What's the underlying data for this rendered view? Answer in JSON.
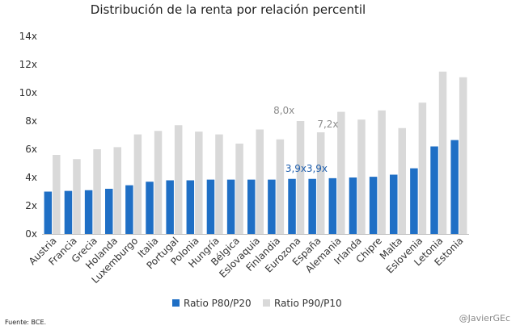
{
  "chart_data": {
    "type": "bar",
    "title": "Distribución de la renta por relación percentil",
    "categories": [
      "Austria",
      "Francia",
      "Grecia",
      "Holanda",
      "Luxemburgo",
      "Italia",
      "Portugal",
      "Polonia",
      "Hungría",
      "Bélgica",
      "Eslovaquia",
      "Finlandia",
      "Eurozona",
      "España",
      "Alemania",
      "Irlanda",
      "Chipre",
      "Malta",
      "Eslovenia",
      "Letonia",
      "Estonia"
    ],
    "series": [
      {
        "name": "Ratio P80/P20",
        "color": "#1f6fc5",
        "values": [
          3.0,
          3.05,
          3.1,
          3.2,
          3.45,
          3.7,
          3.8,
          3.8,
          3.85,
          3.85,
          3.85,
          3.85,
          3.9,
          3.9,
          3.95,
          4.0,
          4.05,
          4.2,
          4.65,
          6.2,
          6.65
        ]
      },
      {
        "name": "Ratio P90/P10",
        "color": "#d9d9d9",
        "values": [
          5.6,
          5.3,
          6.0,
          6.15,
          7.05,
          7.3,
          7.7,
          7.25,
          7.05,
          6.4,
          7.4,
          6.7,
          8.0,
          7.2,
          8.65,
          8.1,
          8.75,
          7.5,
          9.3,
          11.5,
          11.1
        ]
      }
    ],
    "ylim": [
      0,
      14
    ],
    "yticks": [
      0,
      2,
      4,
      6,
      8,
      10,
      12,
      14
    ],
    "ytick_labels": [
      "0x",
      "2x",
      "4x",
      "6x",
      "8x",
      "10x",
      "12x",
      "14x"
    ],
    "annotations": [
      {
        "text": "8,0x",
        "category": "Eurozona",
        "series": 1,
        "color": "#8c8c8c"
      },
      {
        "text": "7,2x",
        "category": "España",
        "series": 1,
        "color": "#8c8c8c"
      },
      {
        "text": "3,9x",
        "category": "Eurozona",
        "series": 0,
        "color": "#1f5fae"
      },
      {
        "text": "3,9x",
        "category": "España",
        "series": 0,
        "color": "#1f5fae"
      }
    ],
    "legend_position": "bottom"
  },
  "footer": {
    "source": "Fuente: BCE.",
    "credit": "@JavierGEc"
  }
}
